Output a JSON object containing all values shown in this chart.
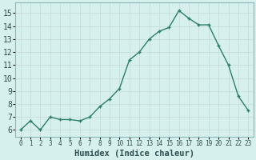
{
  "x": [
    0,
    1,
    2,
    3,
    4,
    5,
    6,
    7,
    8,
    9,
    10,
    11,
    12,
    13,
    14,
    15,
    16,
    17,
    18,
    19,
    20,
    21,
    22,
    23
  ],
  "y": [
    6.0,
    6.7,
    6.0,
    7.0,
    6.8,
    6.8,
    6.7,
    7.0,
    7.8,
    8.4,
    9.2,
    11.4,
    12.0,
    13.0,
    13.6,
    13.9,
    15.2,
    14.6,
    14.1,
    14.1,
    12.5,
    11.0,
    8.6,
    7.5
  ],
  "line_color": "#2d7d6e",
  "marker_color": "#2d7d6e",
  "bg_color": "#d6f0ee",
  "grid_major_color": "#c8dede",
  "grid_minor_color": "#dce8e8",
  "xlabel": "Humidex (Indice chaleur)",
  "ylim": [
    5.5,
    15.8
  ],
  "xlim": [
    -0.5,
    23.5
  ],
  "yticks": [
    6,
    7,
    8,
    9,
    10,
    11,
    12,
    13,
    14,
    15
  ],
  "xticks": [
    0,
    1,
    2,
    3,
    4,
    5,
    6,
    7,
    8,
    9,
    10,
    11,
    12,
    13,
    14,
    15,
    16,
    17,
    18,
    19,
    20,
    21,
    22,
    23
  ],
  "xlabel_fontsize": 7.5,
  "tick_fontsize_x": 5.5,
  "tick_fontsize_y": 7,
  "line_width": 1.0,
  "marker_size": 3.5
}
